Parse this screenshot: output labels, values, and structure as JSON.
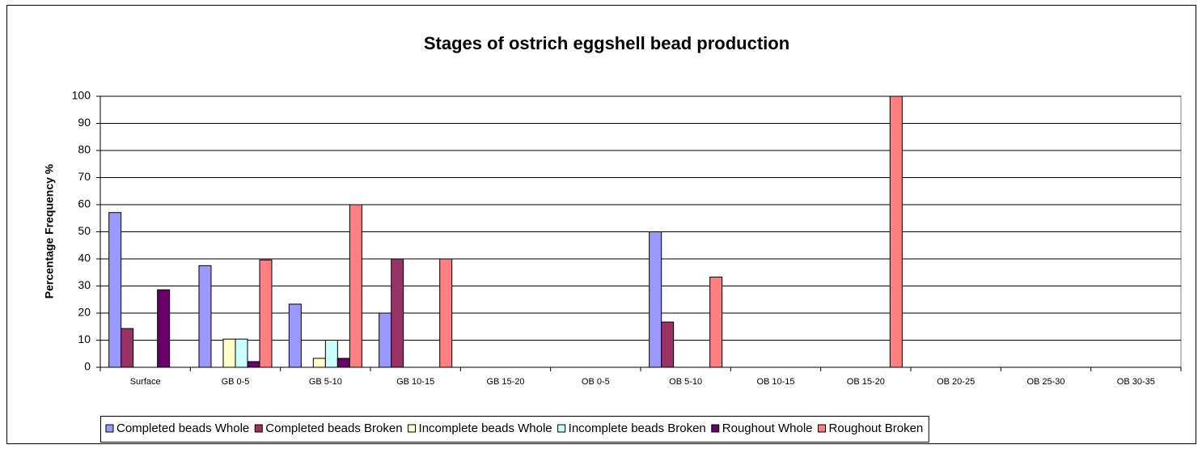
{
  "chart_data": {
    "type": "bar",
    "title": "Stages of ostrich eggshell bead production",
    "y_label": "Percentage Frequency %",
    "categories": [
      "Surface",
      "GB 0-5",
      "GB 5-10",
      "GB 10-15",
      "GB 15-20",
      "OB 0-5",
      "OB 5-10",
      "OB 10-15",
      "OB 15-20",
      "OB 20-25",
      "OB 25-30",
      "OB 30-35"
    ],
    "series": [
      {
        "name": "Completed beads Whole",
        "color": "#9999ff",
        "values": [
          57.1,
          37.5,
          23.3,
          20,
          0,
          0,
          50,
          0,
          0,
          0,
          0,
          0
        ]
      },
      {
        "name": "Completed beads Broken",
        "color": "#993366",
        "values": [
          14.3,
          0,
          0,
          40,
          0,
          0,
          16.7,
          0,
          0,
          0,
          0,
          0
        ]
      },
      {
        "name": "Incomplete beads Whole",
        "color": "#ffffcc",
        "values": [
          0,
          10.4,
          3.3,
          0,
          0,
          0,
          0,
          0,
          0,
          0,
          0,
          0
        ]
      },
      {
        "name": "Incomplete beads Broken",
        "color": "#ccffff",
        "values": [
          0,
          10.4,
          10,
          0,
          0,
          0,
          0,
          0,
          0,
          0,
          0,
          0
        ]
      },
      {
        "name": "Roughout Whole",
        "color": "#660066",
        "values": [
          28.6,
          2.1,
          3.3,
          0,
          0,
          0,
          0,
          0,
          0,
          0,
          0,
          0
        ]
      },
      {
        "name": "Roughout Broken",
        "color": "#ff8080",
        "values": [
          0,
          39.6,
          60,
          40,
          0,
          0,
          33.3,
          0,
          100,
          0,
          0,
          0
        ]
      }
    ],
    "ylim": [
      0,
      100
    ],
    "yticks": [
      0,
      10,
      20,
      30,
      40,
      50,
      60,
      70,
      80,
      90,
      100
    ],
    "grid": true,
    "legend": "bottom"
  }
}
